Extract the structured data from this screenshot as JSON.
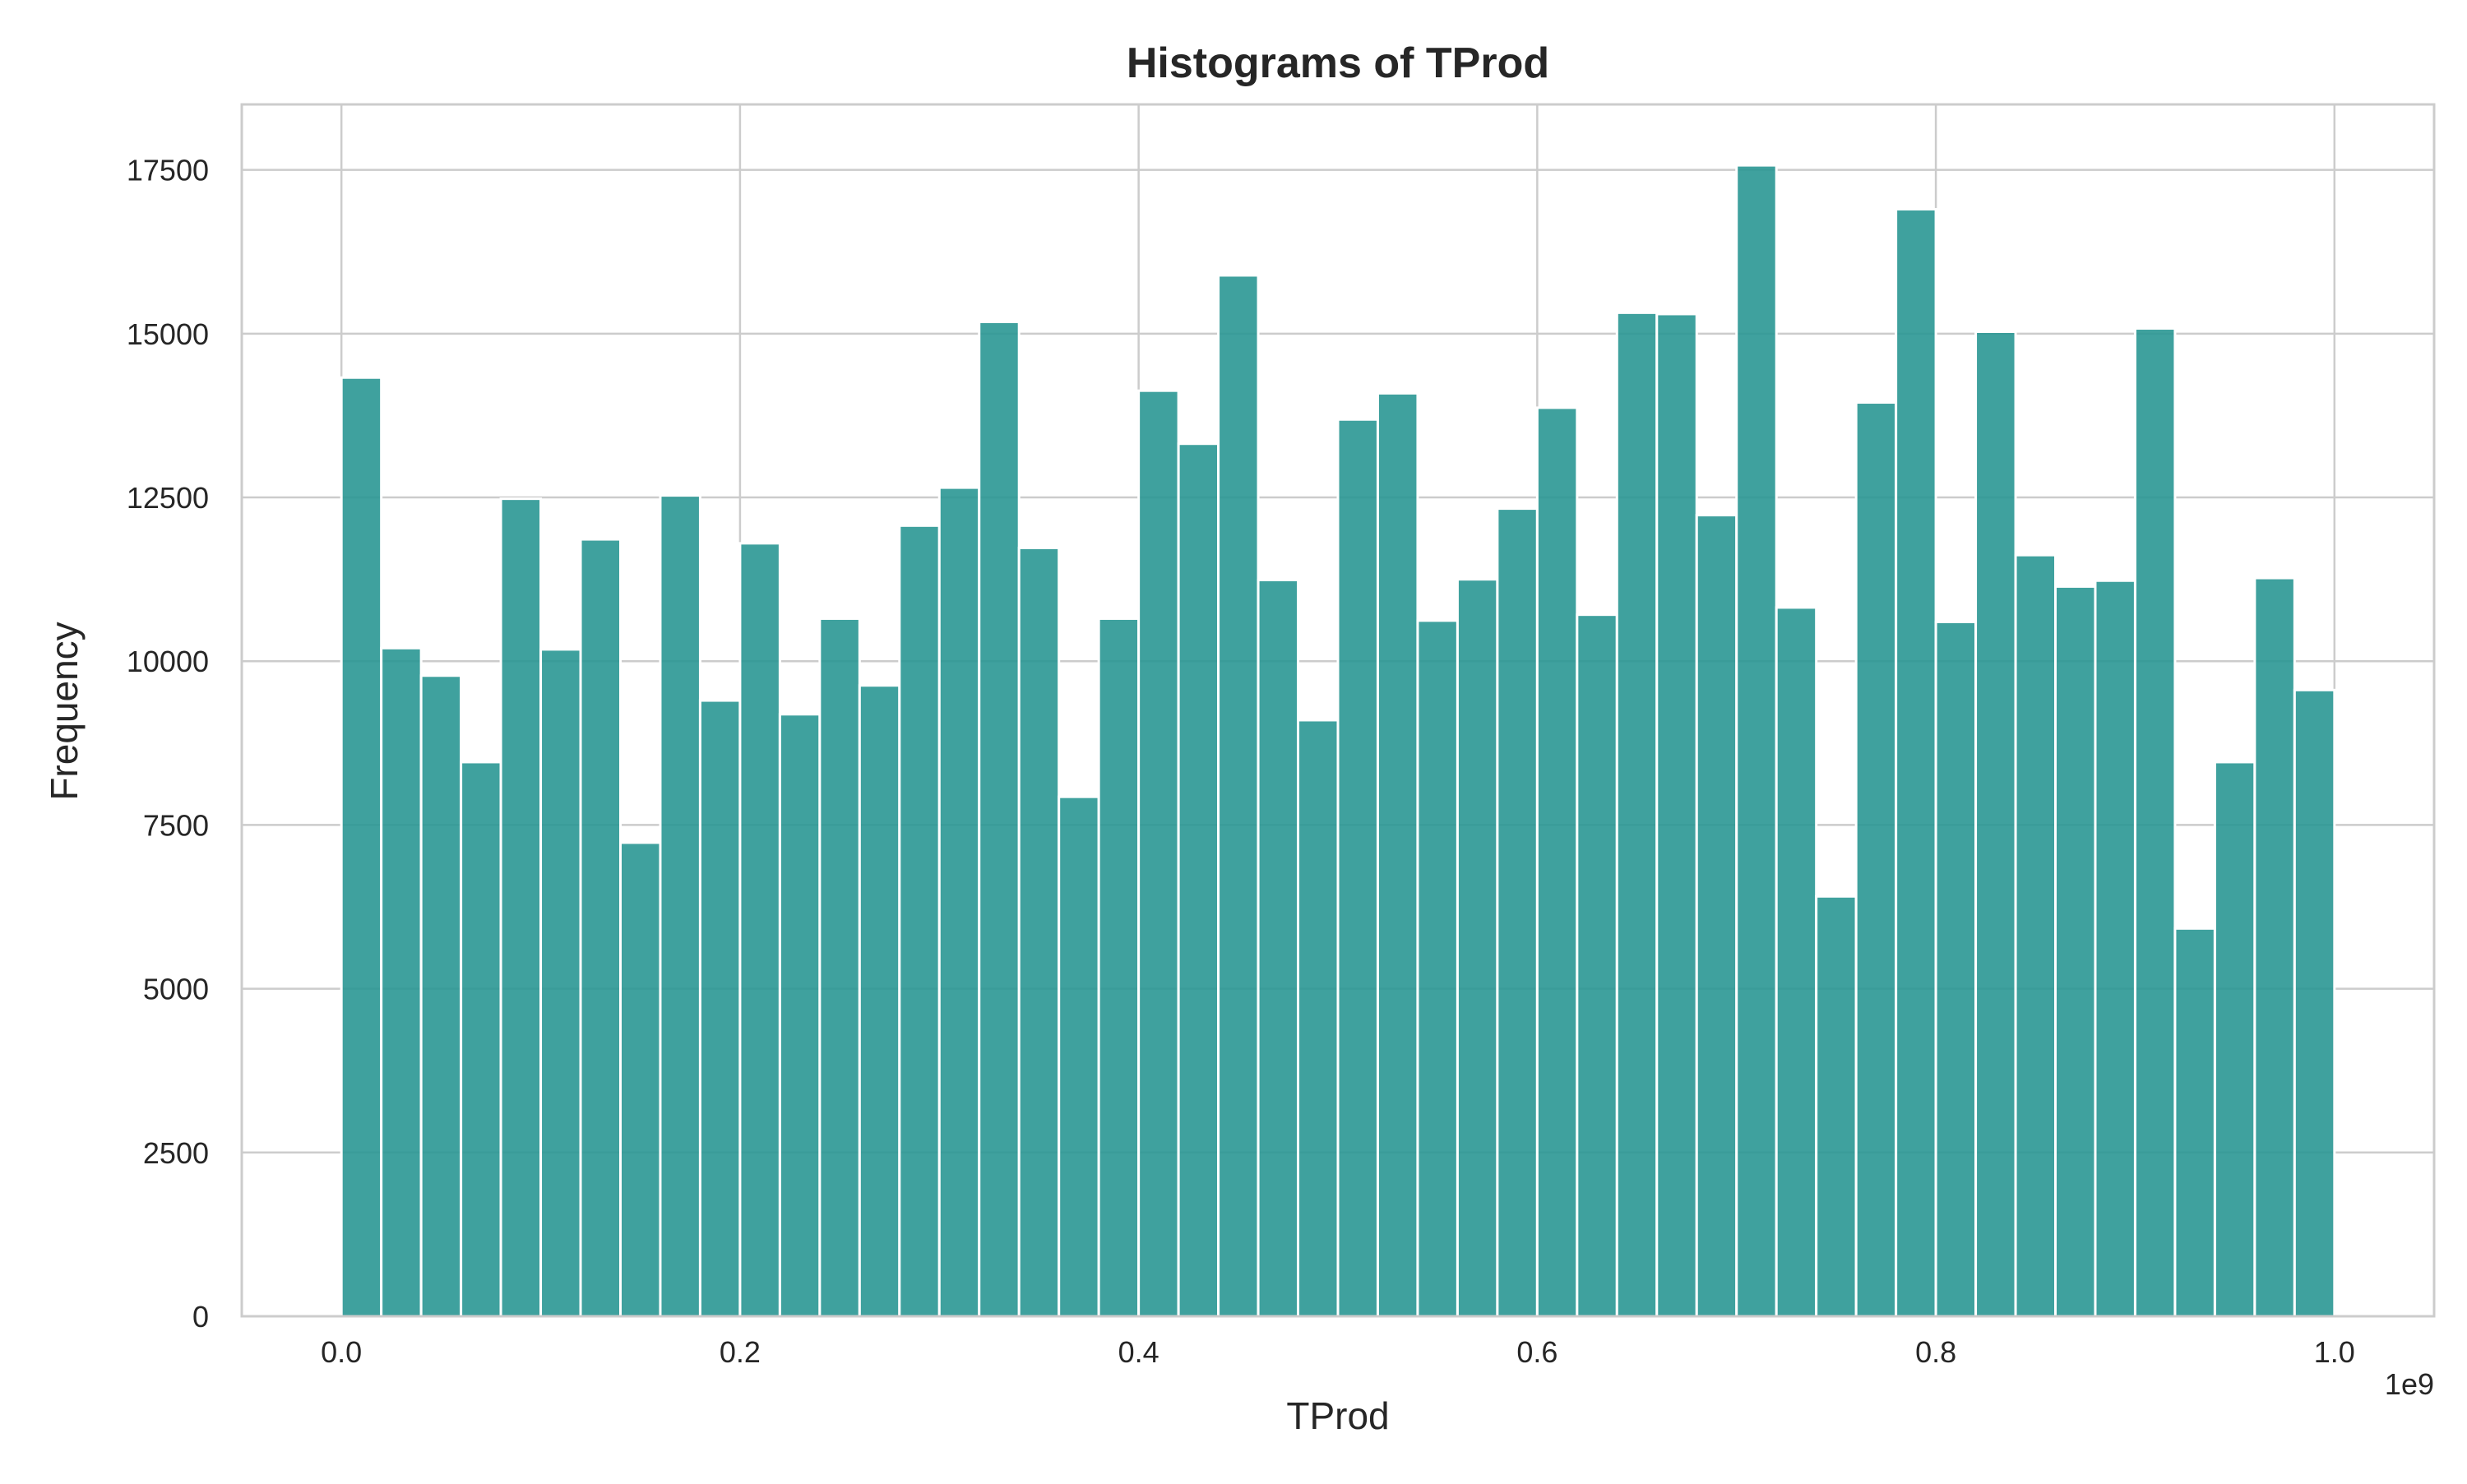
{
  "chart_data": {
    "type": "bar",
    "title": "Histograms of TProd",
    "xlabel": "TProd",
    "ylabel": "Frequency",
    "x_offset_label": "1e9",
    "xlim": [
      -0.05,
      1.05
    ],
    "ylim": [
      0,
      18500
    ],
    "xticks": [
      0.0,
      0.2,
      0.4,
      0.6,
      0.8,
      1.0
    ],
    "xtick_labels": [
      "0.0",
      "0.2",
      "0.4",
      "0.6",
      "0.8",
      "1.0"
    ],
    "yticks": [
      0,
      2500,
      5000,
      7500,
      10000,
      12500,
      15000,
      17500
    ],
    "ytick_labels": [
      "0",
      "2500",
      "5000",
      "7500",
      "10000",
      "12500",
      "15000",
      "17500"
    ],
    "grid": true,
    "bar_color": "#2a9793",
    "bin_start": 0.0,
    "bin_end": 1.0,
    "bins": 50,
    "values": [
      14330,
      10200,
      9780,
      8460,
      12480,
      10180,
      11860,
      7230,
      12530,
      9400,
      11800,
      9190,
      10650,
      9630,
      12070,
      12650,
      15180,
      11730,
      7930,
      10650,
      14130,
      13320,
      15890,
      11240,
      9100,
      13690,
      14090,
      10620,
      11250,
      12330,
      13870,
      10710,
      15320,
      15300,
      12230,
      17570,
      10820,
      6410,
      13950,
      16900,
      10600,
      15030,
      11620,
      11140,
      11230,
      15080,
      5920,
      8460,
      11270,
      9560
    ]
  }
}
